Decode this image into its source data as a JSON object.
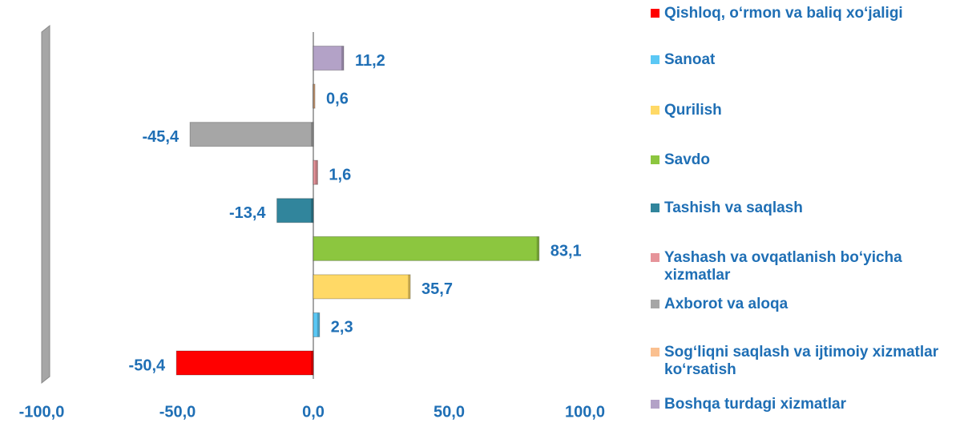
{
  "chart_data": {
    "type": "hbar",
    "categories": [
      "Qishloq, o‘rmon va baliq xo‘jaligi",
      "Sanoat",
      "Qurilish",
      "Savdo",
      "Tashish va saqlash",
      "Yashash  va ovqatlanish bo‘yicha xizmatlar",
      "Axborot va aloqa",
      "Sog‘liqni saqlash va ijtimoiy xizmatlar ko‘rsatish",
      "Boshqa turdagi xizmatlar"
    ],
    "values": [
      -50.4,
      2.3,
      35.7,
      83.1,
      -13.4,
      1.6,
      -45.4,
      0.6,
      11.2
    ],
    "value_labels": [
      "-50,4",
      "2,3",
      "35,7",
      "83,1",
      "-13,4",
      "1,6",
      "-45,4",
      "0,6",
      "11,2"
    ],
    "colors": [
      "#ff0000",
      "#5bc8f5",
      "#ffd966",
      "#8cc63f",
      "#31859c",
      "#e6949a",
      "#a6a6a6",
      "#fac090",
      "#b3a2c7"
    ],
    "xlim": [
      -100,
      100
    ],
    "xticks": [
      {
        "value": -100,
        "label": "-100,0"
      },
      {
        "value": -50,
        "label": "-50,0"
      },
      {
        "value": 0,
        "label": "0,0"
      },
      {
        "value": 50,
        "label": "50,0"
      },
      {
        "value": 100,
        "label": "100,0"
      }
    ]
  }
}
